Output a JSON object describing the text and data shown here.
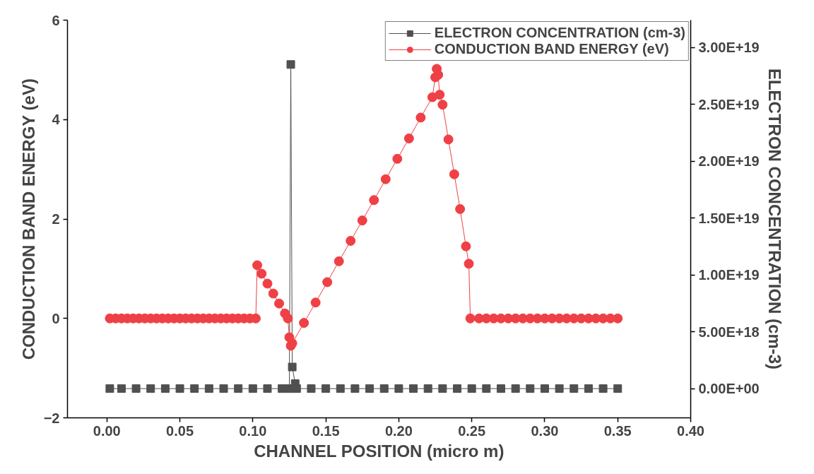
{
  "chart_data": {
    "type": "line",
    "xlabel": "CHANNEL POSITION (micro m)",
    "ylabel": "CONDUCTION BAND ENERGY (eV)",
    "y2label": "ELECTRON CONCENTRATION (cm-3)",
    "xlim": [
      -0.027,
      0.4
    ],
    "xticks": [
      {
        "value": 0,
        "label": "0.00"
      },
      {
        "value": 0.05,
        "label": "0.05"
      },
      {
        "value": 0.1,
        "label": "0.10"
      },
      {
        "value": 0.15,
        "label": "0.15"
      },
      {
        "value": 0.2,
        "label": "0.20"
      },
      {
        "value": 0.25,
        "label": "0.25"
      },
      {
        "value": 0.3,
        "label": "0.30"
      },
      {
        "value": 0.35,
        "label": "0.35"
      },
      {
        "value": 0.4,
        "label": "0.40"
      }
    ],
    "ylim": [
      -2,
      6
    ],
    "yticks": [
      {
        "value": -2,
        "label": "−2"
      },
      0,
      2,
      4,
      6
    ],
    "y2lim": [
      -2.57e+18,
      3.24e+19
    ],
    "y2ticks": [
      {
        "value": 0,
        "label": "0.00E+00"
      },
      {
        "value": 5e+18,
        "label": "5.00E+18"
      },
      {
        "value": 1e+19,
        "label": "1.00E+19"
      },
      {
        "value": 1.5e+19,
        "label": "1.50E+19"
      },
      {
        "value": 2e+19,
        "label": "2.00E+19"
      },
      {
        "value": 2.5e+19,
        "label": "2.50E+19"
      },
      {
        "value": 3e+19,
        "label": "3.00E+19"
      }
    ],
    "grid": false,
    "legend": "top right",
    "line_style": "solid",
    "series": [
      {
        "name": "ELECTRON CONCENTRATION (cm-3)",
        "color": "#505050",
        "marker": "square",
        "axis": "y2",
        "x": [
          0.002,
          0.01,
          0.02,
          0.03,
          0.04,
          0.05,
          0.06,
          0.07,
          0.08,
          0.09,
          0.1,
          0.11,
          0.12,
          0.125,
          0.126,
          0.127,
          0.129,
          0.13,
          0.14,
          0.15,
          0.16,
          0.17,
          0.18,
          0.19,
          0.2,
          0.21,
          0.22,
          0.23,
          0.24,
          0.25,
          0.26,
          0.27,
          0.28,
          0.29,
          0.3,
          0.31,
          0.32,
          0.33,
          0.34,
          0.35
        ],
        "values": [
          0,
          0,
          0,
          0,
          0,
          0,
          0,
          0,
          0,
          0,
          0,
          0,
          0,
          0,
          2.85e+19,
          1.9e+18,
          4.4e+17,
          0,
          0,
          0,
          0,
          0,
          0,
          0,
          0,
          0,
          0,
          0,
          0,
          0,
          0,
          0,
          0,
          0,
          0,
          0,
          0,
          0,
          0,
          0
        ]
      },
      {
        "name": "CONDUCTION BAND ENERGY (eV)",
        "color": "#ef4045",
        "marker": "circle",
        "axis": "y",
        "x": [
          0.002,
          0.006,
          0.01,
          0.014,
          0.018,
          0.022,
          0.026,
          0.03,
          0.034,
          0.038,
          0.042,
          0.046,
          0.05,
          0.054,
          0.058,
          0.062,
          0.066,
          0.07,
          0.074,
          0.078,
          0.082,
          0.086,
          0.09,
          0.094,
          0.098,
          0.102,
          0.103,
          0.106,
          0.11,
          0.114,
          0.118,
          0.122,
          0.124,
          0.125,
          0.126,
          0.127,
          0.135,
          0.143,
          0.151,
          0.159,
          0.167,
          0.175,
          0.183,
          0.191,
          0.199,
          0.207,
          0.215,
          0.223,
          0.225,
          0.226,
          0.227,
          0.228,
          0.23,
          0.234,
          0.238,
          0.242,
          0.246,
          0.248,
          0.249,
          0.255,
          0.26,
          0.265,
          0.27,
          0.275,
          0.28,
          0.285,
          0.29,
          0.295,
          0.3,
          0.305,
          0.31,
          0.315,
          0.32,
          0.325,
          0.33,
          0.335,
          0.34,
          0.345,
          0.35
        ],
        "values": [
          0,
          0,
          0,
          0,
          0,
          0,
          0,
          0,
          0,
          0,
          0,
          0,
          0,
          0,
          0,
          0,
          0,
          0,
          0,
          0,
          0,
          0,
          0,
          0,
          0,
          0,
          1.07,
          0.9,
          0.7,
          0.5,
          0.3,
          0.1,
          0.0,
          -0.38,
          -0.55,
          -0.5,
          -0.09,
          0.32,
          0.73,
          1.15,
          1.56,
          1.97,
          2.38,
          2.8,
          3.21,
          3.62,
          4.04,
          4.45,
          4.85,
          5.02,
          4.9,
          4.5,
          4.3,
          3.6,
          2.9,
          2.2,
          1.45,
          1.1,
          0,
          0,
          0,
          0,
          0,
          0,
          0,
          0,
          0,
          0,
          0,
          0,
          0,
          0,
          0,
          0,
          0,
          0,
          0,
          0,
          0
        ]
      }
    ]
  }
}
